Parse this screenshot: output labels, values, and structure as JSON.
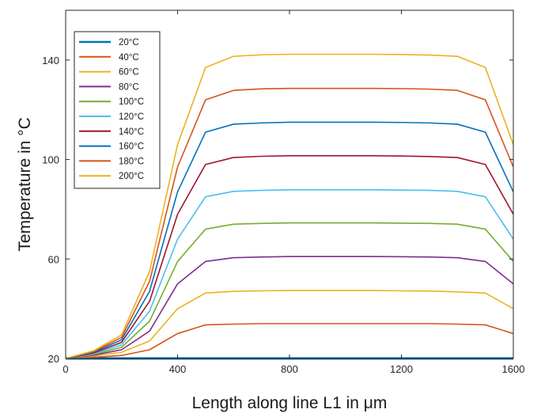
{
  "chart_data": {
    "type": "line",
    "xlabel": "Length along line L1 in μm",
    "ylabel": "Temperature in °C",
    "xlim": [
      0,
      1600
    ],
    "ylim": [
      20,
      160
    ],
    "xticks": [
      "0",
      "400",
      "800",
      "1200",
      "1600"
    ],
    "yticks": [
      "20",
      "60",
      "100",
      "140"
    ],
    "grid": false,
    "legend_position": "top-left",
    "x": [
      0,
      100,
      200,
      300,
      400,
      500,
      600,
      700,
      800,
      900,
      1000,
      1100,
      1200,
      1300,
      1400,
      1500,
      1600
    ],
    "series": [
      {
        "name": "20°C",
        "color": "#0072BD",
        "values": [
          20,
          20,
          20,
          20,
          20,
          20,
          20,
          20,
          20,
          20,
          20,
          20,
          20,
          20,
          20,
          20,
          20
        ]
      },
      {
        "name": "40°C",
        "color": "#D95319",
        "values": [
          20,
          20.5,
          21.2,
          23.5,
          30,
          33.5,
          33.8,
          34,
          34,
          34,
          34,
          34,
          34,
          34,
          33.8,
          33.5,
          30
        ]
      },
      {
        "name": "60°C",
        "color": "#EDB120",
        "values": [
          20,
          21,
          22.5,
          27,
          40,
          46.3,
          47,
          47.2,
          47.3,
          47.3,
          47.3,
          47.3,
          47.2,
          47.1,
          46.8,
          46.3,
          40
        ]
      },
      {
        "name": "80°C",
        "color": "#7E2F8E",
        "values": [
          20,
          21.3,
          23.5,
          31,
          50,
          59,
          60.5,
          60.8,
          61,
          61,
          61,
          61,
          60.9,
          60.8,
          60.5,
          59,
          50
        ]
      },
      {
        "name": "100°C",
        "color": "#77AC30",
        "values": [
          20,
          21.6,
          24.5,
          35,
          59,
          72,
          74,
          74.3,
          74.5,
          74.5,
          74.5,
          74.5,
          74.4,
          74.3,
          74,
          72,
          59
        ]
      },
      {
        "name": "120°C",
        "color": "#4DBEEE",
        "values": [
          20,
          21.9,
          25.5,
          39,
          68,
          85,
          87.2,
          87.6,
          87.8,
          87.8,
          87.8,
          87.8,
          87.7,
          87.6,
          87.2,
          85,
          68
        ]
      },
      {
        "name": "140°C",
        "color": "#A2142F",
        "values": [
          20,
          22.2,
          26.5,
          43,
          78,
          98,
          100.8,
          101.3,
          101.5,
          101.5,
          101.5,
          101.5,
          101.4,
          101.2,
          100.8,
          98,
          78
        ]
      },
      {
        "name": "160°C",
        "color": "#0072BD",
        "values": [
          20,
          22.5,
          27.5,
          47,
          87,
          111,
          114.2,
          114.7,
          115,
          115,
          115,
          115,
          114.9,
          114.7,
          114.2,
          111,
          87
        ]
      },
      {
        "name": "180°C",
        "color": "#D95319",
        "values": [
          20,
          22.8,
          28.5,
          51,
          97,
          124,
          127.8,
          128.4,
          128.6,
          128.6,
          128.6,
          128.6,
          128.5,
          128.3,
          127.8,
          124,
          97
        ]
      },
      {
        "name": "200°C",
        "color": "#EDB120",
        "values": [
          20,
          23.1,
          29.5,
          55,
          106,
          137,
          141.5,
          142.1,
          142.3,
          142.3,
          142.3,
          142.3,
          142.2,
          142,
          141.5,
          137,
          106
        ]
      }
    ]
  }
}
